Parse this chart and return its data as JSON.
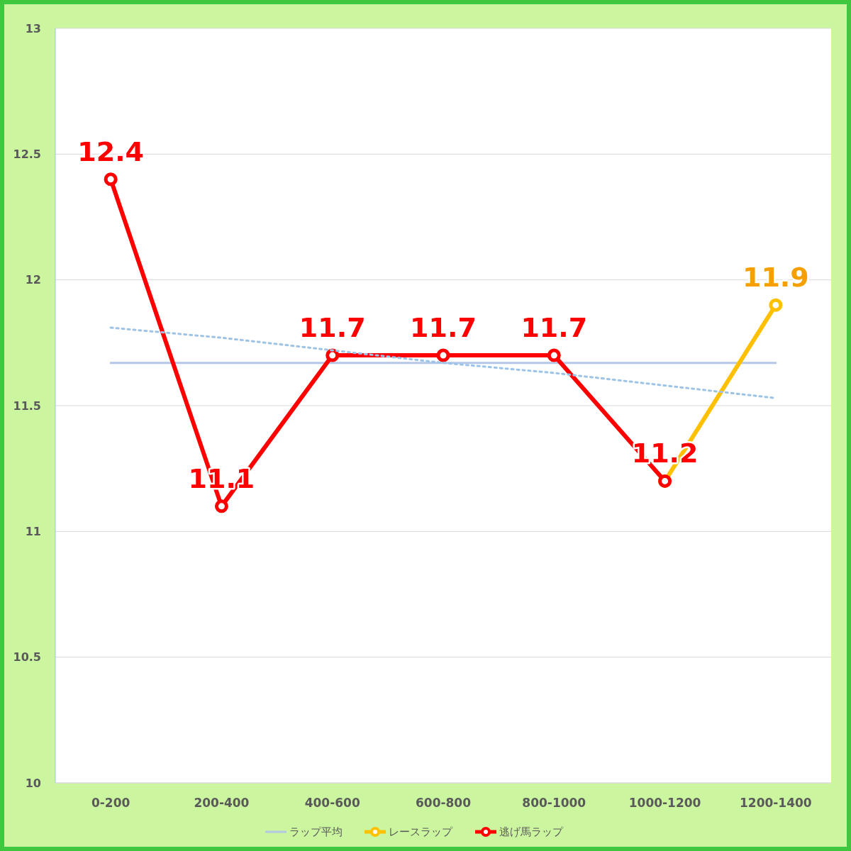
{
  "chart_data": {
    "type": "line",
    "categories": [
      "0-200",
      "200-400",
      "400-600",
      "600-800",
      "800-1000",
      "1000-1200",
      "1200-1400"
    ],
    "series": [
      {
        "name": "ラップ平均",
        "color": "#b4c7e7",
        "values": [
          11.67,
          11.67,
          11.67,
          11.67,
          11.67,
          11.67,
          11.67
        ],
        "marker": "none"
      },
      {
        "name": "レースラップ",
        "color": "#ffc000",
        "values": [
          null,
          null,
          null,
          null,
          null,
          11.2,
          11.9
        ],
        "marker": "circle",
        "value_labels": [
          null,
          null,
          null,
          null,
          null,
          null,
          "11.9"
        ]
      },
      {
        "name": "逃げ馬ラップ",
        "color": "#ff0000",
        "values": [
          12.4,
          11.1,
          11.7,
          11.7,
          11.7,
          11.2,
          null
        ],
        "marker": "circle",
        "value_labels": [
          "12.4",
          "11.1",
          "11.7",
          "11.7",
          "11.7",
          "11.2",
          null
        ]
      },
      {
        "color": "#9dc3e6",
        "values": [
          11.81,
          11.77,
          11.72,
          11.67,
          11.63,
          11.58,
          11.53
        ],
        "marker": "none",
        "line_style": "dotted"
      }
    ],
    "ylim": [
      10,
      13
    ],
    "yticks": [
      10,
      10.5,
      11,
      11.5,
      12,
      12.5,
      13
    ],
    "grid": "y",
    "legend": "bottom"
  }
}
